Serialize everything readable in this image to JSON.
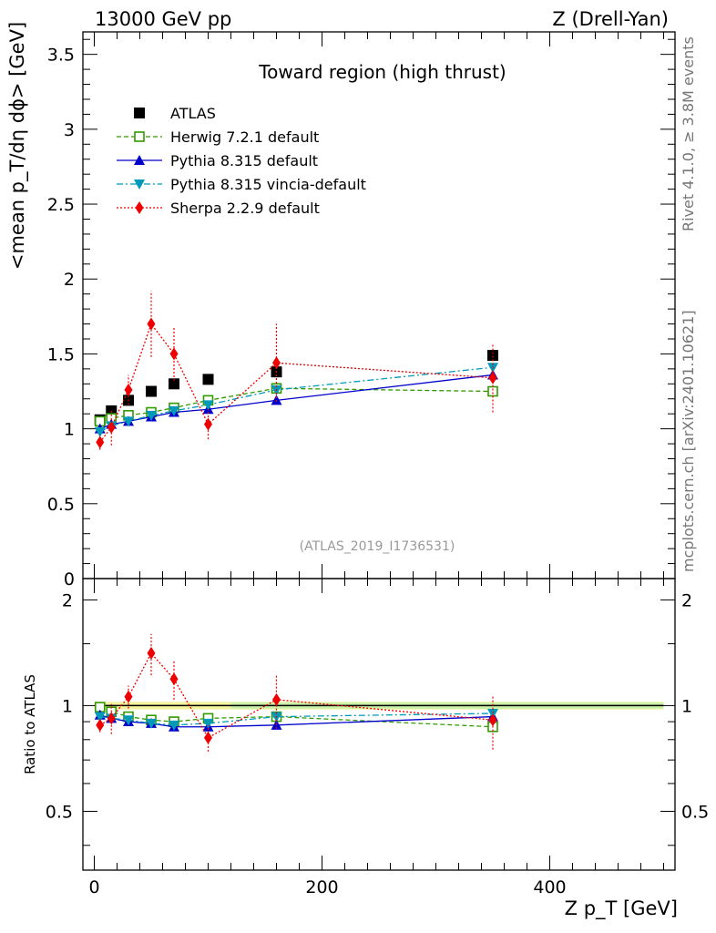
{
  "header": {
    "left": "13000 GeV pp",
    "right": "Z (Drell-Yan)"
  },
  "side_labels": {
    "rivet": "Rivet 4.1.0, ≥ 3.8M events",
    "mcplots": "mcplots.cern.ch [arXiv:2401.10621]"
  },
  "chart_data": [
    {
      "type": "scatter",
      "panel": "main",
      "title": "Toward region (high thrust)",
      "watermark": "(ATLAS_2019_I1736531)",
      "ylabel": "<mean p_T/dη dϕ> [GeV]",
      "xlim": [
        -10,
        510
      ],
      "ylim": [
        0,
        3.65
      ],
      "yticks": [
        0,
        0.5,
        1,
        1.5,
        2,
        2.5,
        3,
        3.5
      ],
      "ytick_labels": [
        "0",
        "0.5",
        "1",
        "1.5",
        "2",
        "2.5",
        "3",
        "3.5"
      ],
      "legend_position": "top-left",
      "series": [
        {
          "name": "ATLAS",
          "color": "#000000",
          "marker": "square",
          "x": [
            5,
            15,
            30,
            50,
            70,
            100,
            160,
            350
          ],
          "y": [
            1.06,
            1.12,
            1.19,
            1.25,
            1.3,
            1.33,
            1.38,
            1.49
          ]
        },
        {
          "name": "Herwig 7.2.1 default",
          "color": "#339900",
          "marker": "open-square",
          "line": "dashed",
          "x": [
            5,
            15,
            30,
            50,
            70,
            100,
            160,
            350
          ],
          "y": [
            1.05,
            1.07,
            1.09,
            1.11,
            1.14,
            1.19,
            1.27,
            1.25
          ]
        },
        {
          "name": "Pythia 8.315 default",
          "color": "#0000cc",
          "marker": "triangle-up",
          "line": "solid",
          "x": [
            5,
            15,
            30,
            50,
            70,
            100,
            160,
            350
          ],
          "y": [
            1.0,
            1.03,
            1.05,
            1.08,
            1.11,
            1.13,
            1.19,
            1.36
          ]
        },
        {
          "name": "Pythia 8.315 vincia-default",
          "color": "#0099bb",
          "marker": "triangle-down",
          "line": "dashdot",
          "x": [
            5,
            15,
            30,
            50,
            70,
            100,
            160,
            350
          ],
          "y": [
            0.98,
            1.02,
            1.05,
            1.09,
            1.12,
            1.16,
            1.26,
            1.41
          ]
        },
        {
          "name": "Sherpa 2.2.9 default",
          "color": "#ee0000",
          "marker": "diamond",
          "line": "dotted",
          "x": [
            5,
            15,
            30,
            50,
            70,
            100,
            160,
            350
          ],
          "y": [
            0.91,
            1.01,
            1.26,
            1.7,
            1.5,
            1.03,
            1.44,
            1.34
          ],
          "yerr": [
            0.05,
            0.12,
            0.1,
            0.22,
            0.18,
            0.1,
            0.26,
            0.23
          ]
        }
      ]
    },
    {
      "type": "scatter",
      "panel": "ratio",
      "ylabel": "Ratio to ATLAS",
      "xlabel": "Z p_T [GeV]",
      "xlim": [
        -10,
        510
      ],
      "ylim": [
        0.34,
        2.3
      ],
      "yscale": "log",
      "xticks": [
        0,
        200,
        400
      ],
      "xtick_labels": [
        "0",
        "200",
        "400"
      ],
      "yticks": [
        0.5,
        1,
        2
      ],
      "ytick_labels": [
        "0.5",
        "1",
        "2"
      ],
      "series": [
        {
          "name": "Herwig 7.2.1 default",
          "color": "#339900",
          "x": [
            5,
            15,
            30,
            50,
            70,
            100,
            160,
            350
          ],
          "y": [
            0.99,
            0.96,
            0.93,
            0.91,
            0.9,
            0.92,
            0.93,
            0.87
          ]
        },
        {
          "name": "Pythia 8.315 default",
          "color": "#0000cc",
          "x": [
            5,
            15,
            30,
            50,
            70,
            100,
            160,
            350
          ],
          "y": [
            0.94,
            0.92,
            0.9,
            0.89,
            0.87,
            0.87,
            0.88,
            0.93
          ]
        },
        {
          "name": "Pythia 8.315 vincia-default",
          "color": "#0099bb",
          "x": [
            5,
            15,
            30,
            50,
            70,
            100,
            160,
            350
          ],
          "y": [
            0.93,
            0.92,
            0.91,
            0.89,
            0.88,
            0.89,
            0.93,
            0.95
          ]
        },
        {
          "name": "Sherpa 2.2.9 default",
          "color": "#ee0000",
          "x": [
            5,
            15,
            30,
            50,
            70,
            100,
            160,
            350
          ],
          "y": [
            0.88,
            0.92,
            1.06,
            1.41,
            1.19,
            0.81,
            1.04,
            0.91
          ],
          "yerr": [
            0.04,
            0.09,
            0.08,
            0.19,
            0.15,
            0.07,
            0.18,
            0.16
          ]
        }
      ]
    }
  ]
}
